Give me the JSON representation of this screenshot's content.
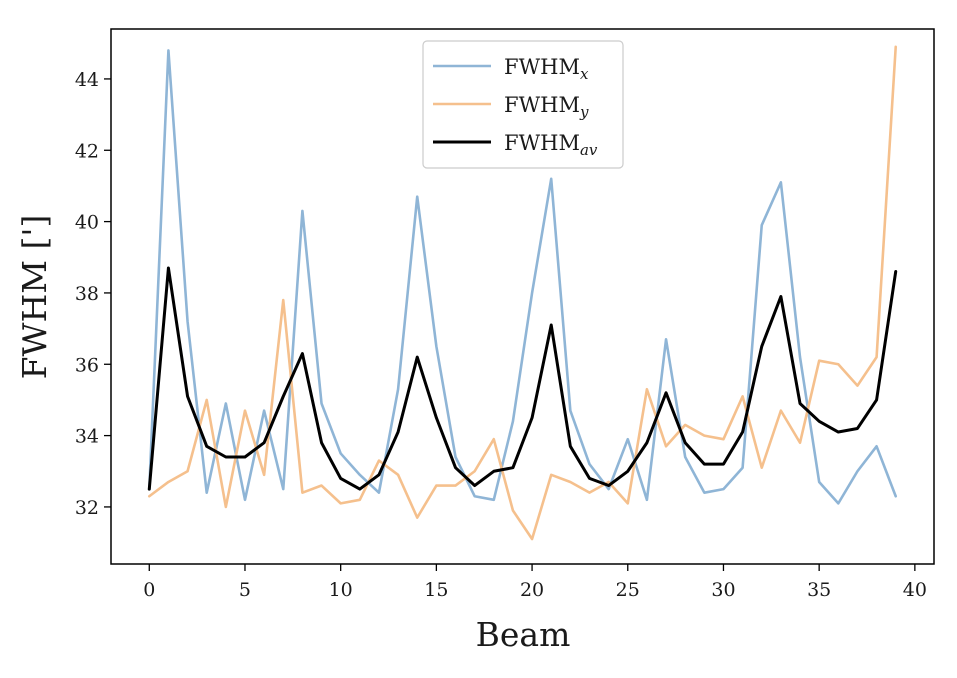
{
  "chart_data": {
    "type": "line",
    "title": "",
    "xlabel": "Beam",
    "ylabel": "FWHM [']",
    "xlim": [
      -2,
      41
    ],
    "ylim": [
      30.4,
      45.4
    ],
    "xticks": [
      0,
      5,
      10,
      15,
      20,
      25,
      30,
      35,
      40
    ],
    "yticks": [
      32,
      34,
      36,
      38,
      40,
      42,
      44
    ],
    "legend_position": "top-center",
    "x": [
      0,
      1,
      2,
      3,
      4,
      5,
      6,
      7,
      8,
      9,
      10,
      11,
      12,
      13,
      14,
      15,
      16,
      17,
      18,
      19,
      20,
      21,
      22,
      23,
      24,
      25,
      26,
      27,
      28,
      29,
      30,
      31,
      32,
      33,
      34,
      35,
      36,
      37,
      38,
      39
    ],
    "series": [
      {
        "name": "FWHM_x",
        "label_main": "FWHM",
        "label_sub": "x",
        "color": "#8fb5d6",
        "values": [
          32.5,
          44.8,
          37.2,
          32.4,
          34.9,
          32.2,
          34.7,
          32.5,
          40.3,
          34.9,
          33.5,
          32.9,
          32.4,
          35.3,
          40.7,
          36.5,
          33.4,
          32.3,
          32.2,
          34.4,
          38.0,
          41.2,
          34.7,
          33.2,
          32.5,
          33.9,
          32.2,
          36.7,
          33.4,
          32.4,
          32.5,
          33.1,
          39.9,
          41.1,
          36.2,
          32.7,
          32.1,
          33.0,
          33.7,
          32.3
        ]
      },
      {
        "name": "FWHM_y",
        "label_main": "FWHM",
        "label_sub": "y",
        "color": "#f5c08d",
        "values": [
          32.3,
          32.7,
          33.0,
          35.0,
          32.0,
          34.7,
          32.9,
          37.8,
          32.4,
          32.6,
          32.1,
          32.2,
          33.3,
          32.9,
          31.7,
          32.6,
          32.6,
          33.0,
          33.9,
          31.9,
          31.1,
          32.9,
          32.7,
          32.4,
          32.7,
          32.1,
          35.3,
          33.7,
          34.3,
          34.0,
          33.9,
          35.1,
          33.1,
          34.7,
          33.8,
          36.1,
          36.0,
          35.4,
          36.2,
          44.9
        ]
      },
      {
        "name": "FWHM_av",
        "label_main": "FWHM",
        "label_sub": "av",
        "color": "#000000",
        "values": [
          32.5,
          38.7,
          35.1,
          33.7,
          33.4,
          33.4,
          33.8,
          35.1,
          36.3,
          33.8,
          32.8,
          32.5,
          32.9,
          34.1,
          36.2,
          34.5,
          33.1,
          32.6,
          33.0,
          33.1,
          34.5,
          37.1,
          33.7,
          32.8,
          32.6,
          33.0,
          33.8,
          35.2,
          33.8,
          33.2,
          33.2,
          34.1,
          36.5,
          37.9,
          34.9,
          34.4,
          34.1,
          34.2,
          35.0,
          38.6
        ]
      }
    ]
  }
}
